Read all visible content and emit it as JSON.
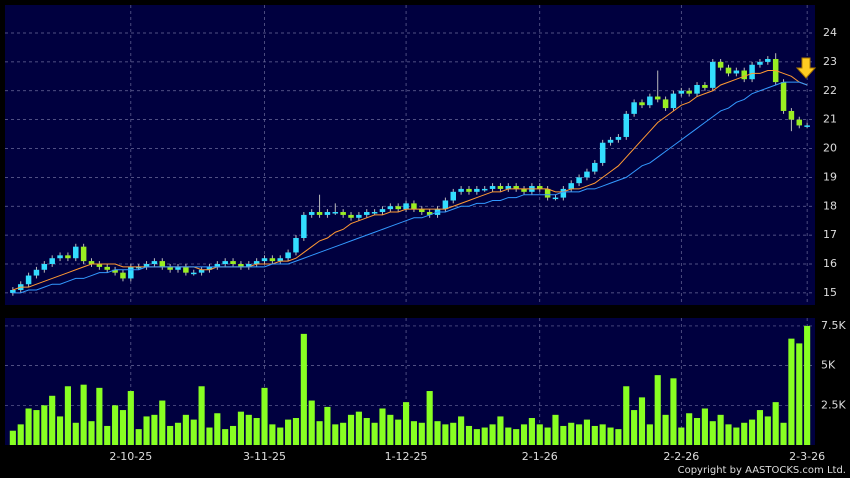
{
  "chart_data": [
    {
      "type": "candlestick",
      "x": [
        0,
        1,
        2,
        3,
        4,
        5,
        6,
        7,
        8,
        9,
        10,
        11,
        12,
        13,
        14,
        15,
        16,
        17,
        18,
        19,
        20,
        21,
        22,
        23,
        24,
        25,
        26,
        27,
        28,
        29,
        30,
        31,
        32,
        33,
        34,
        35,
        36,
        37,
        38,
        39,
        40,
        41,
        42,
        43,
        44,
        45,
        46,
        47,
        48,
        49,
        50,
        51,
        52,
        53,
        54,
        55,
        56,
        57,
        58,
        59,
        60,
        61,
        62,
        63,
        64,
        65,
        66,
        67,
        68,
        69,
        70,
        71,
        72,
        73,
        74,
        75,
        76,
        77,
        78,
        79,
        80,
        81,
        82,
        83,
        84,
        85,
        86,
        87,
        88,
        89,
        90,
        91,
        92,
        93,
        94,
        95,
        96,
        97,
        98,
        99,
        100,
        101
      ],
      "open": [
        15.0,
        15.1,
        15.3,
        15.6,
        15.8,
        16.0,
        16.2,
        16.3,
        16.2,
        16.6,
        16.1,
        16.0,
        15.9,
        15.8,
        15.7,
        15.5,
        15.9,
        15.9,
        16.0,
        16.1,
        15.9,
        15.8,
        15.9,
        15.7,
        15.7,
        15.8,
        15.9,
        16.0,
        16.1,
        16.0,
        15.9,
        16.0,
        16.1,
        16.2,
        16.1,
        16.2,
        16.4,
        16.9,
        17.7,
        17.8,
        17.7,
        17.8,
        17.8,
        17.7,
        17.6,
        17.7,
        17.8,
        17.8,
        17.9,
        18.0,
        17.9,
        18.1,
        17.9,
        17.8,
        17.7,
        17.9,
        18.2,
        18.5,
        18.6,
        18.5,
        18.6,
        18.6,
        18.7,
        18.6,
        18.7,
        18.6,
        18.5,
        18.7,
        18.6,
        18.3,
        18.3,
        18.6,
        18.8,
        19.0,
        19.2,
        19.5,
        20.2,
        20.3,
        20.4,
        21.2,
        21.6,
        21.5,
        21.8,
        21.7,
        21.4,
        21.9,
        22.0,
        21.9,
        22.2,
        22.1,
        23.0,
        22.8,
        22.6,
        22.7,
        22.4,
        22.9,
        23.0,
        23.1,
        22.3,
        21.3,
        21.0,
        20.8
      ],
      "high": [
        15.2,
        15.4,
        15.7,
        15.9,
        16.1,
        16.3,
        16.4,
        16.4,
        16.7,
        16.7,
        16.2,
        16.1,
        16.0,
        15.9,
        15.8,
        16.0,
        16.0,
        16.1,
        16.2,
        16.2,
        16.0,
        16.0,
        16.0,
        15.8,
        15.9,
        16.0,
        16.1,
        16.2,
        16.2,
        16.1,
        16.1,
        16.2,
        16.3,
        16.3,
        16.3,
        16.5,
        17.0,
        17.8,
        17.9,
        18.4,
        17.9,
        18.1,
        17.9,
        17.8,
        17.8,
        17.9,
        17.9,
        18.0,
        18.1,
        18.1,
        18.2,
        18.2,
        18.0,
        17.9,
        18.0,
        18.3,
        18.6,
        18.7,
        18.7,
        18.7,
        18.7,
        18.8,
        18.8,
        18.8,
        18.8,
        18.7,
        18.8,
        18.8,
        18.7,
        18.4,
        18.7,
        18.9,
        19.1,
        19.3,
        19.6,
        20.3,
        20.4,
        20.5,
        21.3,
        21.7,
        21.7,
        21.9,
        22.7,
        21.8,
        22.0,
        22.1,
        22.1,
        22.3,
        22.3,
        23.1,
        23.1,
        22.9,
        22.8,
        22.8,
        23.0,
        23.1,
        23.2,
        23.3,
        22.4,
        21.4,
        21.1,
        20.9
      ],
      "low": [
        14.9,
        15.0,
        15.2,
        15.5,
        15.7,
        15.9,
        16.1,
        16.1,
        16.1,
        16.0,
        15.9,
        15.8,
        15.7,
        15.6,
        15.4,
        15.4,
        15.8,
        15.8,
        15.9,
        15.8,
        15.7,
        15.7,
        15.6,
        15.6,
        15.6,
        15.7,
        15.8,
        15.9,
        15.9,
        15.8,
        15.8,
        15.9,
        16.0,
        16.0,
        16.0,
        16.1,
        16.3,
        16.8,
        17.6,
        17.6,
        17.6,
        17.7,
        17.6,
        17.5,
        17.5,
        17.6,
        17.7,
        17.7,
        17.8,
        17.8,
        17.8,
        17.8,
        17.7,
        17.6,
        17.6,
        17.8,
        18.1,
        18.4,
        18.4,
        18.4,
        18.5,
        18.5,
        18.5,
        18.5,
        18.5,
        18.4,
        18.4,
        18.5,
        18.2,
        18.2,
        18.2,
        18.5,
        18.7,
        18.9,
        19.1,
        19.4,
        20.1,
        20.2,
        20.3,
        21.1,
        21.4,
        21.4,
        21.6,
        21.3,
        21.3,
        21.8,
        21.8,
        21.8,
        22.0,
        22.0,
        22.7,
        22.5,
        22.5,
        22.3,
        22.3,
        22.8,
        22.9,
        22.2,
        21.2,
        20.6,
        20.7,
        20.7
      ],
      "close": [
        15.1,
        15.3,
        15.6,
        15.8,
        16.0,
        16.2,
        16.3,
        16.2,
        16.6,
        16.1,
        16.0,
        15.9,
        15.8,
        15.7,
        15.5,
        15.9,
        15.9,
        16.0,
        16.1,
        15.9,
        15.8,
        15.9,
        15.7,
        15.7,
        15.8,
        15.9,
        16.0,
        16.1,
        16.0,
        15.9,
        16.0,
        16.1,
        16.2,
        16.1,
        16.2,
        16.4,
        16.9,
        17.7,
        17.8,
        17.7,
        17.8,
        17.8,
        17.7,
        17.6,
        17.7,
        17.8,
        17.8,
        17.9,
        18.0,
        17.9,
        18.1,
        17.9,
        17.8,
        17.7,
        17.9,
        18.2,
        18.5,
        18.6,
        18.5,
        18.6,
        18.6,
        18.7,
        18.6,
        18.7,
        18.6,
        18.5,
        18.7,
        18.6,
        18.3,
        18.3,
        18.6,
        18.8,
        19.0,
        19.2,
        19.5,
        20.2,
        20.3,
        20.4,
        21.2,
        21.6,
        21.5,
        21.8,
        21.7,
        21.4,
        21.9,
        22.0,
        21.9,
        22.2,
        22.1,
        23.0,
        22.8,
        22.6,
        22.7,
        22.4,
        22.9,
        23.0,
        23.1,
        22.3,
        21.3,
        21.0,
        20.8,
        20.8
      ],
      "up_color": "#33ddff",
      "down_color": "#99ee22",
      "series": [
        {
          "color": "#ff9933",
          "values": [
            15.1,
            15.2,
            15.2,
            15.3,
            15.4,
            15.5,
            15.6,
            15.7,
            15.8,
            15.9,
            16.0,
            16.0,
            16.0,
            16.0,
            15.9,
            15.9,
            15.9,
            15.9,
            15.9,
            15.9,
            15.9,
            15.9,
            15.9,
            15.9,
            15.8,
            15.8,
            15.9,
            15.9,
            15.9,
            15.9,
            15.9,
            16.0,
            16.0,
            16.0,
            16.1,
            16.1,
            16.2,
            16.4,
            16.6,
            16.8,
            16.9,
            17.1,
            17.2,
            17.4,
            17.5,
            17.6,
            17.7,
            17.7,
            17.8,
            17.8,
            17.9,
            17.9,
            17.9,
            17.9,
            17.9,
            17.9,
            18.0,
            18.1,
            18.2,
            18.3,
            18.4,
            18.5,
            18.5,
            18.6,
            18.6,
            18.6,
            18.6,
            18.6,
            18.6,
            18.5,
            18.5,
            18.6,
            18.6,
            18.7,
            18.8,
            19.0,
            19.2,
            19.4,
            19.7,
            20.0,
            20.3,
            20.6,
            20.9,
            21.1,
            21.3,
            21.5,
            21.6,
            21.8,
            21.9,
            22.0,
            22.2,
            22.3,
            22.4,
            22.5,
            22.6,
            22.6,
            22.7,
            22.7,
            22.6,
            22.5,
            22.3,
            22.2
          ]
        },
        {
          "color": "#3399ff",
          "values": [
            15.0,
            15.0,
            15.1,
            15.1,
            15.2,
            15.3,
            15.3,
            15.4,
            15.5,
            15.5,
            15.6,
            15.7,
            15.7,
            15.8,
            15.8,
            15.8,
            15.8,
            15.9,
            15.9,
            15.9,
            15.9,
            15.9,
            15.9,
            15.9,
            15.9,
            15.9,
            15.9,
            15.9,
            15.9,
            15.9,
            15.9,
            15.9,
            15.9,
            16.0,
            16.0,
            16.0,
            16.1,
            16.2,
            16.3,
            16.4,
            16.5,
            16.6,
            16.7,
            16.8,
            16.9,
            17.0,
            17.1,
            17.2,
            17.3,
            17.4,
            17.5,
            17.6,
            17.6,
            17.7,
            17.8,
            17.8,
            17.9,
            18.0,
            18.0,
            18.1,
            18.1,
            18.2,
            18.2,
            18.3,
            18.3,
            18.4,
            18.4,
            18.4,
            18.4,
            18.4,
            18.5,
            18.5,
            18.5,
            18.6,
            18.6,
            18.7,
            18.8,
            18.9,
            19.0,
            19.2,
            19.4,
            19.5,
            19.7,
            19.9,
            20.1,
            20.3,
            20.5,
            20.7,
            20.9,
            21.1,
            21.3,
            21.4,
            21.6,
            21.7,
            21.9,
            22.0,
            22.1,
            22.2,
            22.3,
            22.3,
            22.3,
            22.2
          ]
        }
      ],
      "xlim": [
        -1,
        102
      ],
      "ylim": [
        14.58,
        24.97
      ],
      "yticks": [
        15,
        16,
        17,
        18,
        19,
        20,
        21,
        22,
        23,
        24
      ],
      "grid": true
    },
    {
      "type": "bar",
      "x": [
        0,
        1,
        2,
        3,
        4,
        5,
        6,
        7,
        8,
        9,
        10,
        11,
        12,
        13,
        14,
        15,
        16,
        17,
        18,
        19,
        20,
        21,
        22,
        23,
        24,
        25,
        26,
        27,
        28,
        29,
        30,
        31,
        32,
        33,
        34,
        35,
        36,
        37,
        38,
        39,
        40,
        41,
        42,
        43,
        44,
        45,
        46,
        47,
        48,
        49,
        50,
        51,
        52,
        53,
        54,
        55,
        56,
        57,
        58,
        59,
        60,
        61,
        62,
        63,
        64,
        65,
        66,
        67,
        68,
        69,
        70,
        71,
        72,
        73,
        74,
        75,
        76,
        77,
        78,
        79,
        80,
        81,
        82,
        83,
        84,
        85,
        86,
        87,
        88,
        89,
        90,
        91,
        92,
        93,
        94,
        95,
        96,
        97,
        98,
        99,
        100,
        101
      ],
      "values": [
        900,
        1300,
        2300,
        2200,
        2500,
        3100,
        1800,
        3700,
        1400,
        3800,
        1500,
        3600,
        1200,
        2500,
        2200,
        3400,
        1000,
        1800,
        1900,
        2800,
        1200,
        1400,
        1900,
        1600,
        3700,
        1100,
        2000,
        1000,
        1200,
        2100,
        1900,
        1700,
        3600,
        1300,
        1100,
        1600,
        1700,
        7000,
        2800,
        1500,
        2400,
        1300,
        1400,
        1900,
        2100,
        1700,
        1400,
        2300,
        1900,
        1600,
        2700,
        1500,
        1400,
        3400,
        1500,
        1300,
        1400,
        1800,
        1200,
        1000,
        1100,
        1300,
        1800,
        1100,
        1000,
        1300,
        1700,
        1300,
        1100,
        1900,
        1200,
        1400,
        1300,
        1600,
        1200,
        1300,
        1100,
        1000,
        3700,
        2200,
        3000,
        1300,
        4400,
        1900,
        4200,
        1100,
        2000,
        1700,
        2300,
        1500,
        1900,
        1300,
        1100,
        1400,
        1600,
        2200,
        1800,
        2700,
        1400,
        6700,
        6400,
        7500
      ],
      "color": "#88ff22",
      "xlim": [
        -1,
        102
      ],
      "xticks": [
        {
          "value": 15,
          "label": "2-10-25"
        },
        {
          "value": 32,
          "label": "3-11-25"
        },
        {
          "value": 50,
          "label": "1-12-25"
        },
        {
          "value": 67,
          "label": "2-1-26"
        },
        {
          "value": 85,
          "label": "2-2-26"
        },
        {
          "value": 101,
          "label": "2-3-26"
        }
      ],
      "ylim": [
        0,
        8000
      ],
      "yticks": [
        {
          "value": 2500,
          "label": "2.5K"
        },
        {
          "value": 5000,
          "label": "5K"
        },
        {
          "value": 7500,
          "label": "7.5K"
        }
      ],
      "grid": true
    }
  ],
  "copyright": "Copyright by AASTOCKS.com Ltd."
}
